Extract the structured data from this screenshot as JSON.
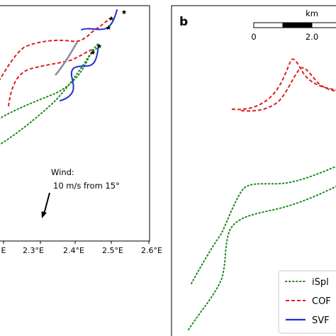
{
  "panel_a": {
    "longitude_ticks": [
      "E",
      "2.3°E",
      "2.4°E",
      "2.5°E",
      "2.6°E"
    ],
    "wind": {
      "heading": "Wind:",
      "detail": "10 m/s from 15°"
    }
  },
  "panel_b": {
    "letter": "b",
    "scalebar": {
      "unit": "km",
      "labels": [
        "0",
        "2.0"
      ]
    },
    "legend": [
      "iSpl",
      "COF",
      "SVF"
    ]
  },
  "colors": {
    "ispl": "#1a8a1a",
    "cof": "#dd1f1f",
    "svf": "#1f2fd6",
    "grey_segment": "#8c8c9a"
  },
  "icons": {
    "end_marker": "star-marker",
    "wind_arrow": "wind-arrow-icon"
  }
}
